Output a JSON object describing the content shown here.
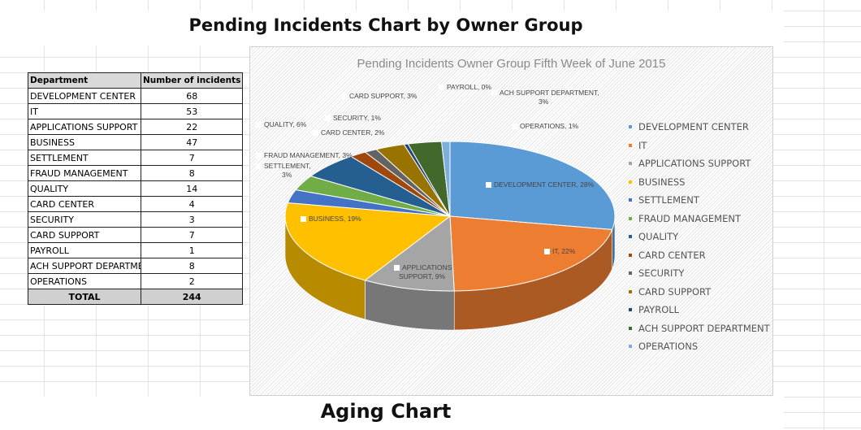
{
  "page_title": "Pending Incidents Chart by Owner Group",
  "footer_title": "Aging Chart",
  "table": {
    "headers": [
      "Department",
      "Number of incidents"
    ],
    "rows": [
      [
        "DEVELOPMENT CENTER",
        "68"
      ],
      [
        "IT",
        "53"
      ],
      [
        "APPLICATIONS SUPPORT",
        "22"
      ],
      [
        "BUSINESS",
        "47"
      ],
      [
        "SETTLEMENT",
        "7"
      ],
      [
        "FRAUD MANAGEMENT",
        "8"
      ],
      [
        "QUALITY",
        "14"
      ],
      [
        "CARD CENTER",
        "4"
      ],
      [
        "SECURITY",
        "3"
      ],
      [
        "CARD SUPPORT",
        "7"
      ],
      [
        "PAYROLL",
        "1"
      ],
      [
        "ACH SUPPORT DEPARTMENT",
        "8"
      ],
      [
        "OPERATIONS",
        "2"
      ]
    ],
    "total_label": "TOTAL",
    "total_value": "244"
  },
  "chart_data": {
    "type": "pie",
    "style": "3d",
    "title": "Pending Incidents Owner Group Fifth Week of June 2015",
    "categories": [
      "DEVELOPMENT CENTER",
      "IT",
      "APPLICATIONS SUPPORT",
      "BUSINESS",
      "SETTLEMENT",
      "FRAUD MANAGEMENT",
      "QUALITY",
      "CARD CENTER",
      "SECURITY",
      "CARD SUPPORT",
      "PAYROLL",
      "ACH SUPPORT DEPARTMENT",
      "OPERATIONS"
    ],
    "values": [
      68,
      53,
      22,
      47,
      7,
      8,
      14,
      4,
      3,
      7,
      1,
      8,
      2
    ],
    "data_labels": [
      "DEVELOPMENT CENTER, 28%",
      "IT, 22%",
      "APPLICATIONS SUPPORT, 9%",
      "BUSINESS, 19%",
      "SETTLEMENT, 3%",
      "FRAUD MANAGEMENT, 3%",
      "QUALITY, 6%",
      "CARD CENTER, 2%",
      "SECURITY, 1%",
      "CARD SUPPORT, 3%",
      "PAYROLL, 0%",
      "ACH SUPPORT DEPARTMENT, 3%",
      "OPERATIONS, 1%"
    ],
    "colors": [
      "#5B9BD5",
      "#ED7D31",
      "#A5A5A5",
      "#FFC000",
      "#4472C4",
      "#70AD47",
      "#255E91",
      "#9E480E",
      "#636363",
      "#997300",
      "#264478",
      "#43682B",
      "#7CAFDD"
    ],
    "legend_position": "right"
  }
}
